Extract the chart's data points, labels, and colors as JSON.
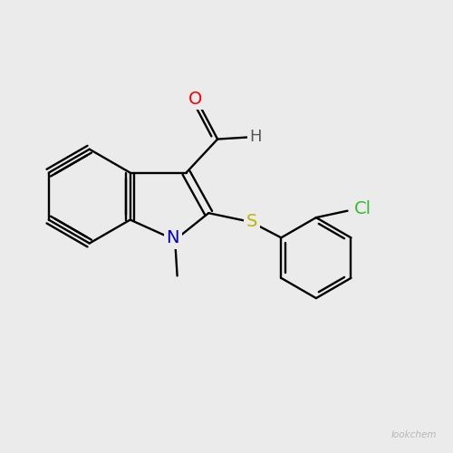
{
  "background_color": "#ebebeb",
  "bond_color": "#000000",
  "atom_colors": {
    "O": "#ff0000",
    "N": "#0000cc",
    "S": "#b8b800",
    "Cl": "#33bb33",
    "C": "#000000",
    "H": "#555555"
  },
  "font_size_label": 14,
  "watermark": "lookchem",
  "watermark_color": "#aaaaaa"
}
